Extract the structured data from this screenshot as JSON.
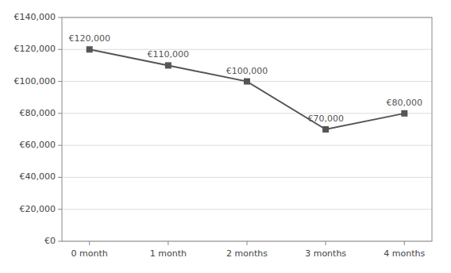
{
  "chart_data": {
    "type": "line",
    "categories": [
      "0 month",
      "1 month",
      "2 months",
      "3 months",
      "4 months"
    ],
    "values": [
      120000,
      110000,
      100000,
      70000,
      80000
    ],
    "value_labels": [
      "€120,000",
      "€110,000",
      "€100,000",
      "€70,000",
      "€80,000"
    ],
    "data_labels": true,
    "color": "#555555",
    "marker": "square",
    "ylim": [
      0,
      140000
    ],
    "yticks": [
      {
        "value": 0,
        "label": "€0"
      },
      {
        "value": 20000,
        "label": "€20,000"
      },
      {
        "value": 40000,
        "label": "€40,000"
      },
      {
        "value": 60000,
        "label": "€60,000"
      },
      {
        "value": 80000,
        "label": "€80,000"
      },
      {
        "value": 100000,
        "label": "€100,000"
      },
      {
        "value": 120000,
        "label": "€120,000"
      },
      {
        "value": 140000,
        "label": "€140,000"
      }
    ],
    "grid": true
  }
}
